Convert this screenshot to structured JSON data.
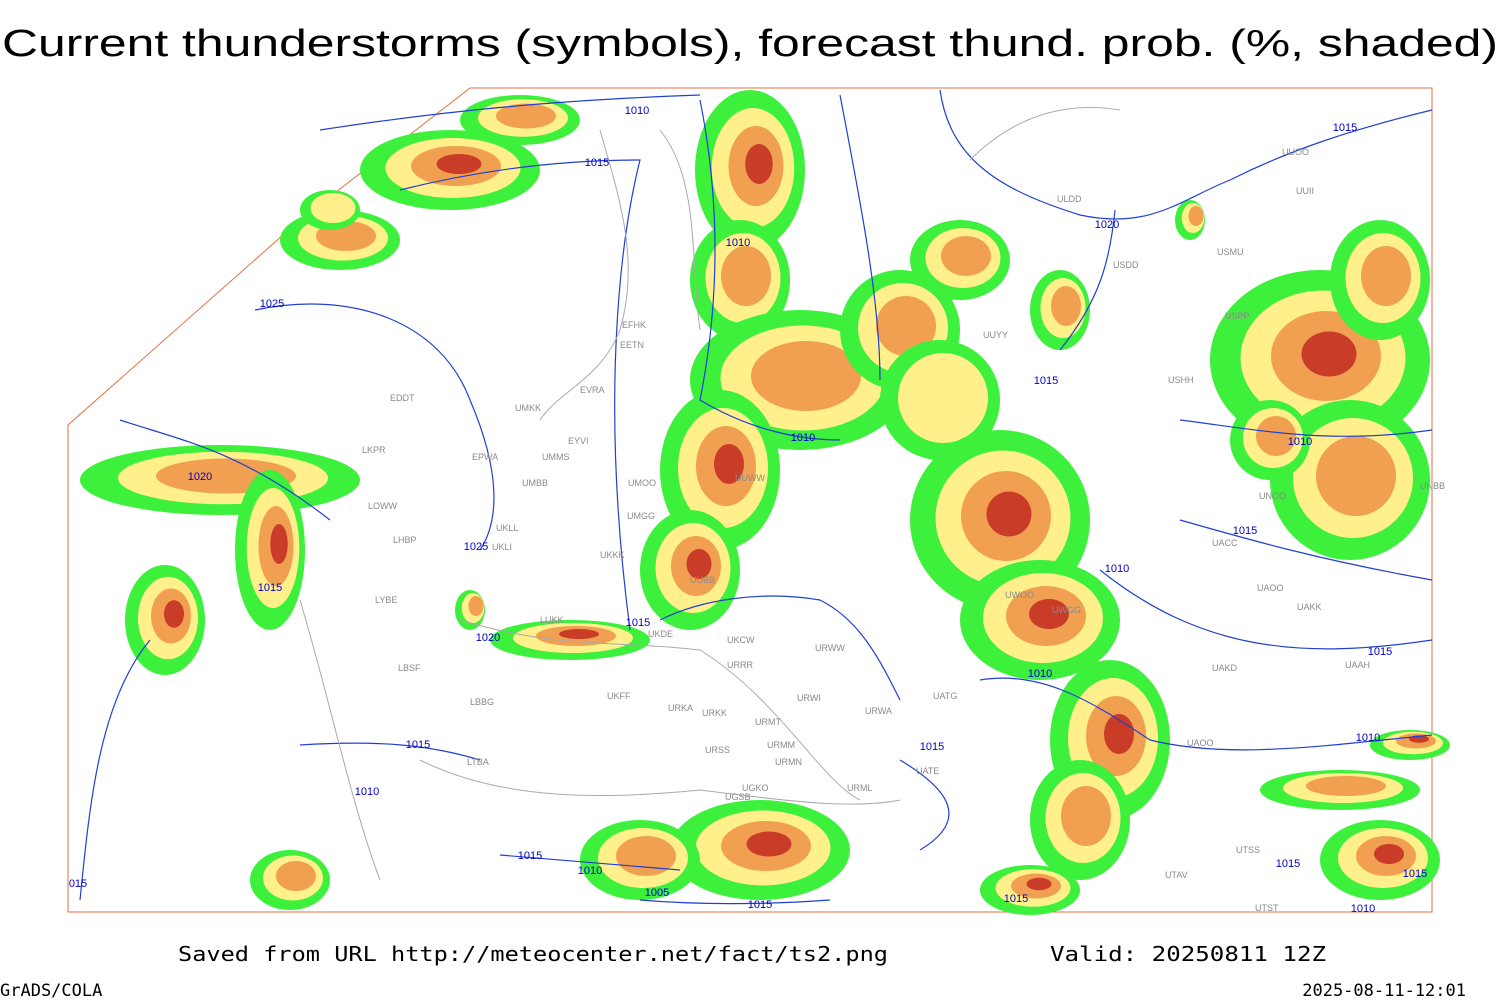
{
  "header": {
    "title": "Current thunderstorms (symbols), forecast thund. prob. (%, shaded)"
  },
  "footer": {
    "source": "Saved from URL http://meteocenter.net/fact/ts2.png",
    "valid": "Valid: 20250811 12Z",
    "credit": "GrADS/COLA",
    "timestamp": "2025-08-11-12:01"
  },
  "isobar_labels": [
    "1010",
    "1015",
    "1010",
    "1025",
    "1020",
    "1025",
    "1015",
    "1020",
    "1015",
    "1010",
    "1020",
    "1015",
    "1015",
    "1010",
    "1015",
    "1010",
    "1010",
    "1015",
    "1015",
    "1010",
    "1015",
    "1010",
    "1005",
    "1015",
    "1015",
    "1015",
    "1010",
    "1015",
    "1015",
    "1010",
    "015"
  ],
  "station_labels": [
    "EFHK",
    "EETN",
    "EVRA",
    "EDDT",
    "UMKK",
    "EYVI",
    "EPWA",
    "UMMS",
    "LKPR",
    "UMOO",
    "UMBB",
    "LOWW",
    "UKLL",
    "UKLI",
    "LHBP",
    "UMGG",
    "UKKK",
    "LYBE",
    "LUKK",
    "UKDE",
    "UKCW",
    "URWW",
    "URRR",
    "LBSF",
    "URWI",
    "LBBG",
    "UKFF",
    "URKA",
    "URKK",
    "URMT",
    "URWA",
    "UATG",
    "URSS",
    "URMM",
    "URMN",
    "UATE",
    "UGKO",
    "URML",
    "UGSB",
    "LTBA",
    "ULDD",
    "USDD",
    "USMU",
    "UUYY",
    "USPP",
    "USHH",
    "UUOO",
    "UUII",
    "UNOO",
    "UACC",
    "UAOO",
    "UAKK",
    "UAKD",
    "UAAH",
    "UAOO",
    "UTSS",
    "UTAV",
    "UTST",
    "UNBB",
    "UWOO",
    "UWGG",
    "UUWW",
    "UUBB"
  ]
}
